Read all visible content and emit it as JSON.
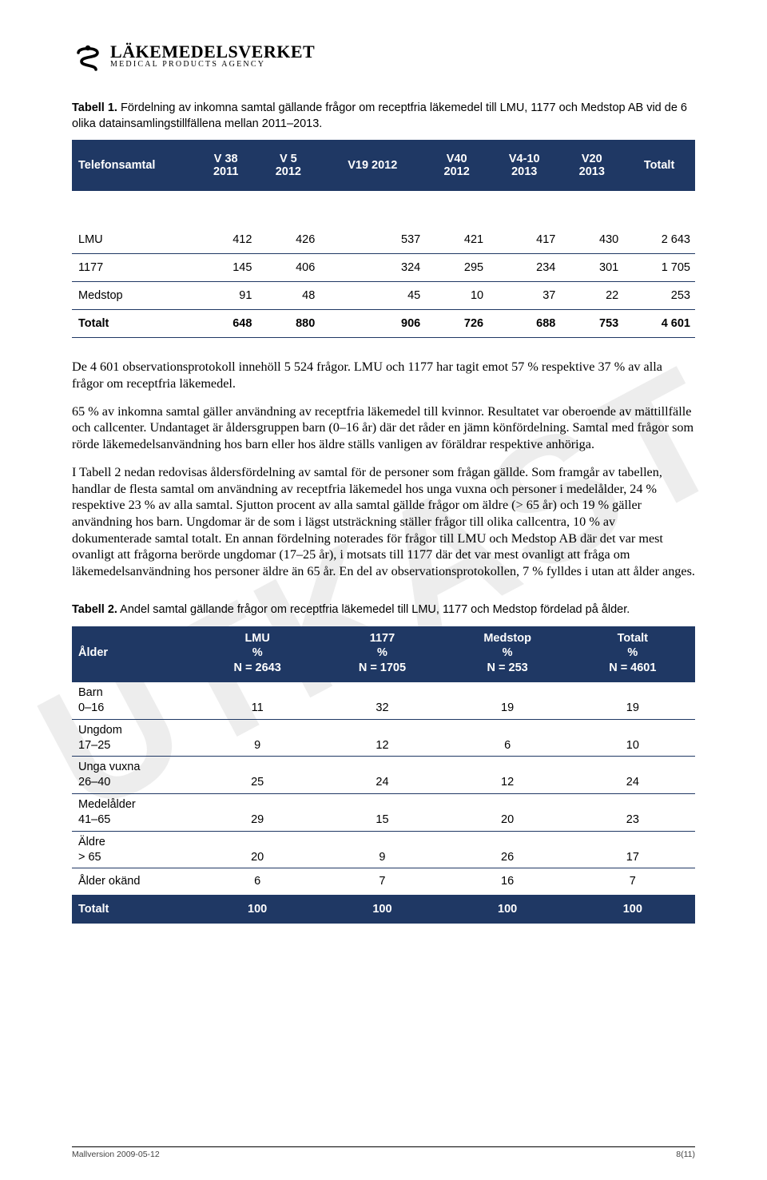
{
  "colors": {
    "header_bg": "#1f3864",
    "header_fg": "#ffffff",
    "rule": "#1f3864",
    "text": "#000000",
    "watermark": "rgba(0,0,0,0.07)"
  },
  "watermark": "UTKAST",
  "logo": {
    "line1": "LÄKEMEDELSVERKET",
    "line2": "MEDICAL PRODUCTS AGENCY"
  },
  "table1": {
    "caption_bold": "Tabell 1.",
    "caption_rest": " Fördelning av inkomna samtal gällande frågor om receptfria läkemedel till LMU, 1177 och Medstop AB vid de 6 olika datainsamlingstillfällena mellan 2011–2013.",
    "type": "table",
    "columns": [
      {
        "label": "Telefonsamtal",
        "align": "left"
      },
      {
        "label": "V 38\n2011",
        "align": "right"
      },
      {
        "label": "V 5\n2012",
        "align": "right"
      },
      {
        "label": "V19 2012",
        "align": "right"
      },
      {
        "label": "V40\n2012",
        "align": "right"
      },
      {
        "label": "V4-10\n2013",
        "align": "right"
      },
      {
        "label": "V20\n2013",
        "align": "right"
      },
      {
        "label": "Totalt",
        "align": "right"
      }
    ],
    "rows": [
      {
        "label": "LMU",
        "cells": [
          "412",
          "426",
          "537",
          "421",
          "417",
          "430",
          "2 643"
        ]
      },
      {
        "label": "1177",
        "cells": [
          "145",
          "406",
          "324",
          "295",
          "234",
          "301",
          "1 705"
        ]
      },
      {
        "label": "Medstop",
        "cells": [
          "91",
          "48",
          "45",
          "10",
          "37",
          "22",
          "253"
        ]
      }
    ],
    "total": {
      "label": "Totalt",
      "cells": [
        "648",
        "880",
        "906",
        "726",
        "688",
        "753",
        "4 601"
      ]
    }
  },
  "paragraphs": {
    "p1": "De 4 601 observationsprotokoll innehöll 5 524 frågor. LMU och 1177 har tagit emot 57 % respektive 37 % av alla frågor om receptfria läkemedel.",
    "p2": "65 % av inkomna samtal gäller användning av receptfria läkemedel till kvinnor. Resultatet var oberoende av mättillfälle och callcenter. Undantaget är åldersgruppen barn (0–16 år) där det råder en jämn könfördelning. Samtal med frågor som rörde läkemedelsanvändning hos barn eller hos äldre ställs vanligen av föräldrar respektive anhöriga.",
    "p3": "I Tabell 2 nedan redovisas åldersfördelning av samtal för de personer som frågan gällde. Som framgår av tabellen, handlar de flesta samtal om användning av receptfria läkemedel hos unga vuxna och personer i medelålder, 24 % respektive 23 % av alla samtal. Sjutton procent av alla samtal gällde frågor om äldre (> 65 år) och 19 % gäller användning hos barn. Ungdomar är de som i lägst utsträckning ställer frågor till olika callcentra, 10 % av dokumenterade samtal totalt. En annan fördelning noterades för frågor till LMU och Medstop AB där det var mest ovanligt att frågorna berörde ungdomar (17–25 år), i motsats till 1177 där det var mest ovanligt att fråga om läkemedelsanvändning hos personer äldre än 65 år. En del av observationsprotokollen, 7 % fylldes i utan att ålder anges."
  },
  "table2": {
    "caption_bold": "Tabell 2.",
    "caption_rest": " Andel samtal gällande frågor om receptfria läkemedel till LMU, 1177 och Medstop fördelad på ålder.",
    "type": "table",
    "columns": [
      {
        "label": "Ålder",
        "sub": "",
        "align": "left"
      },
      {
        "label": "LMU",
        "sub": "%\nN = 2643",
        "align": "center"
      },
      {
        "label": "1177",
        "sub": "%\nN = 1705",
        "align": "center"
      },
      {
        "label": "Medstop",
        "sub": "%\nN = 253",
        "align": "center"
      },
      {
        "label": "Totalt",
        "sub": "%\nN = 4601",
        "align": "center"
      }
    ],
    "rows": [
      {
        "group": "Barn",
        "range": "0–16",
        "cells": [
          "11",
          "32",
          "19",
          "19"
        ]
      },
      {
        "group": "Ungdom",
        "range": "17–25",
        "cells": [
          "9",
          "12",
          "6",
          "10"
        ]
      },
      {
        "group": "Unga vuxna",
        "range": "26–40",
        "cells": [
          "25",
          "24",
          "12",
          "24"
        ]
      },
      {
        "group": "Medelålder",
        "range": "41–65",
        "cells": [
          "29",
          "15",
          "20",
          "23"
        ]
      },
      {
        "group": "Äldre",
        "range": "> 65",
        "cells": [
          "20",
          "9",
          "26",
          "17"
        ]
      },
      {
        "group": "Ålder okänd",
        "range": "",
        "cells": [
          "6",
          "7",
          "16",
          "7"
        ]
      }
    ],
    "total": {
      "label": "Totalt",
      "cells": [
        "100",
        "100",
        "100",
        "100"
      ]
    }
  },
  "footer": {
    "left": "Mallversion 2009-05-12",
    "right": "8(11)"
  }
}
